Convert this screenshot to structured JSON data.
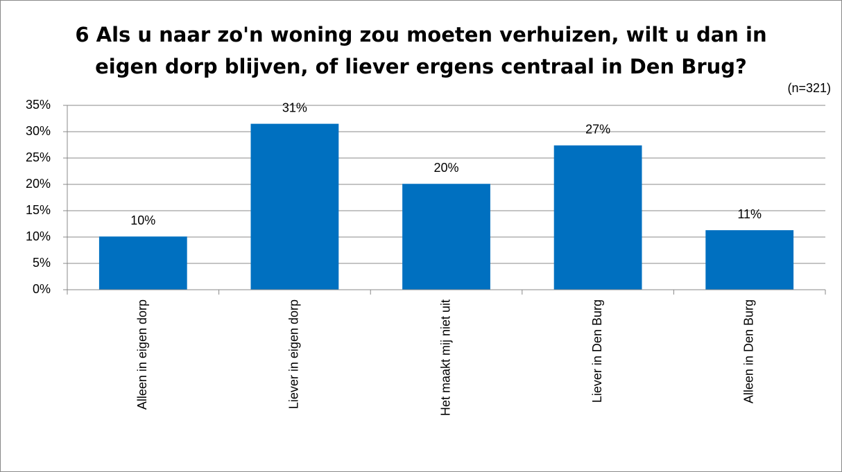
{
  "chart_data": {
    "type": "bar",
    "title": [
      "6 Als u naar zo'n woning zou moeten verhuizen, wilt u dan in",
      "eigen dorp blijven, of liever ergens centraal in Den Brug?"
    ],
    "annotation": "(n=321)",
    "categories": [
      "Alleen in eigen dorp",
      "Liever in eigen dorp",
      "Het maakt mij niet uit",
      "Liever in Den Burg",
      "Alleen in Den Burg"
    ],
    "values": [
      10.1,
      31.5,
      20.1,
      27.4,
      11.3
    ],
    "value_labels": [
      "10%",
      "31%",
      "20%",
      "27%",
      "11%"
    ],
    "color": "#0070c0",
    "ylim": [
      0,
      35
    ],
    "yticks": [
      {
        "value": 0,
        "label": "0%"
      },
      {
        "value": 5,
        "label": "5%"
      },
      {
        "value": 10,
        "label": "10%"
      },
      {
        "value": 15,
        "label": "15%"
      },
      {
        "value": 20,
        "label": "20%"
      },
      {
        "value": 25,
        "label": "25%"
      },
      {
        "value": 30,
        "label": "30%"
      },
      {
        "value": 35,
        "label": "35%"
      }
    ],
    "grid": true
  }
}
